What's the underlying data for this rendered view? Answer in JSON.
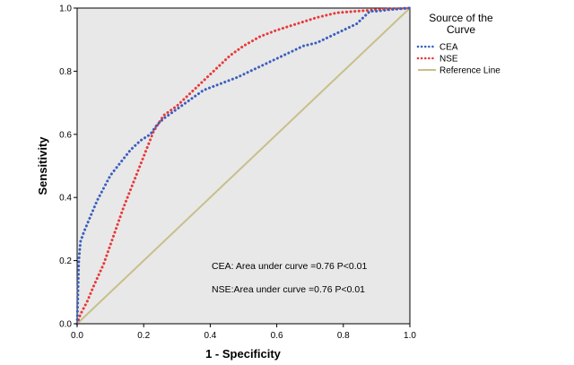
{
  "chart_data": {
    "type": "line",
    "title": "",
    "xlabel": "1 - Specificity",
    "ylabel": "Sensitivity",
    "xlim": [
      0,
      1
    ],
    "ylim": [
      0,
      1
    ],
    "xticks": [
      "0.0",
      "0.2",
      "0.4",
      "0.6",
      "0.8",
      "1.0"
    ],
    "yticks": [
      "0.0",
      "0.2",
      "0.4",
      "0.6",
      "0.8",
      "1.0"
    ],
    "legend": {
      "title": "Source of the Curve",
      "title_lines": [
        "Source of the",
        "Curve"
      ],
      "position": "right"
    },
    "series": [
      {
        "name": "CEA",
        "style": "dotted",
        "color": "#3a5fbf",
        "points": [
          [
            0,
            0
          ],
          [
            0.005,
            0.2
          ],
          [
            0.01,
            0.26
          ],
          [
            0.02,
            0.29
          ],
          [
            0.04,
            0.34
          ],
          [
            0.06,
            0.39
          ],
          [
            0.08,
            0.43
          ],
          [
            0.1,
            0.47
          ],
          [
            0.13,
            0.51
          ],
          [
            0.16,
            0.55
          ],
          [
            0.19,
            0.58
          ],
          [
            0.22,
            0.6
          ],
          [
            0.24,
            0.63
          ],
          [
            0.26,
            0.65
          ],
          [
            0.3,
            0.68
          ],
          [
            0.34,
            0.71
          ],
          [
            0.38,
            0.74
          ],
          [
            0.43,
            0.76
          ],
          [
            0.48,
            0.78
          ],
          [
            0.52,
            0.8
          ],
          [
            0.56,
            0.82
          ],
          [
            0.6,
            0.84
          ],
          [
            0.64,
            0.86
          ],
          [
            0.68,
            0.88
          ],
          [
            0.72,
            0.89
          ],
          [
            0.76,
            0.91
          ],
          [
            0.8,
            0.93
          ],
          [
            0.84,
            0.95
          ],
          [
            0.86,
            0.97
          ],
          [
            0.88,
            0.99
          ],
          [
            0.9,
            0.99
          ],
          [
            0.94,
            0.995
          ],
          [
            1.0,
            1.0
          ]
        ]
      },
      {
        "name": "NSE",
        "style": "dotted",
        "color": "#e8383a",
        "points": [
          [
            0,
            0
          ],
          [
            0.01,
            0.03
          ],
          [
            0.03,
            0.07
          ],
          [
            0.05,
            0.12
          ],
          [
            0.08,
            0.19
          ],
          [
            0.11,
            0.28
          ],
          [
            0.14,
            0.37
          ],
          [
            0.17,
            0.45
          ],
          [
            0.2,
            0.53
          ],
          [
            0.23,
            0.61
          ],
          [
            0.26,
            0.66
          ],
          [
            0.3,
            0.69
          ],
          [
            0.34,
            0.73
          ],
          [
            0.38,
            0.77
          ],
          [
            0.42,
            0.81
          ],
          [
            0.46,
            0.85
          ],
          [
            0.5,
            0.88
          ],
          [
            0.55,
            0.91
          ],
          [
            0.6,
            0.93
          ],
          [
            0.66,
            0.95
          ],
          [
            0.72,
            0.97
          ],
          [
            0.78,
            0.985
          ],
          [
            0.84,
            0.99
          ],
          [
            0.9,
            0.995
          ],
          [
            1.0,
            1.0
          ]
        ]
      },
      {
        "name": "Reference Line",
        "style": "solid",
        "color": "#c8bf8a",
        "points": [
          [
            0,
            0
          ],
          [
            1,
            1
          ]
        ]
      }
    ],
    "annotations": [
      "CEA: Area under curve =0.76 P<0.01",
      "NSE:Area under curve =0.76 P<0.01"
    ],
    "background": "#e8e8e8",
    "grid": false
  }
}
